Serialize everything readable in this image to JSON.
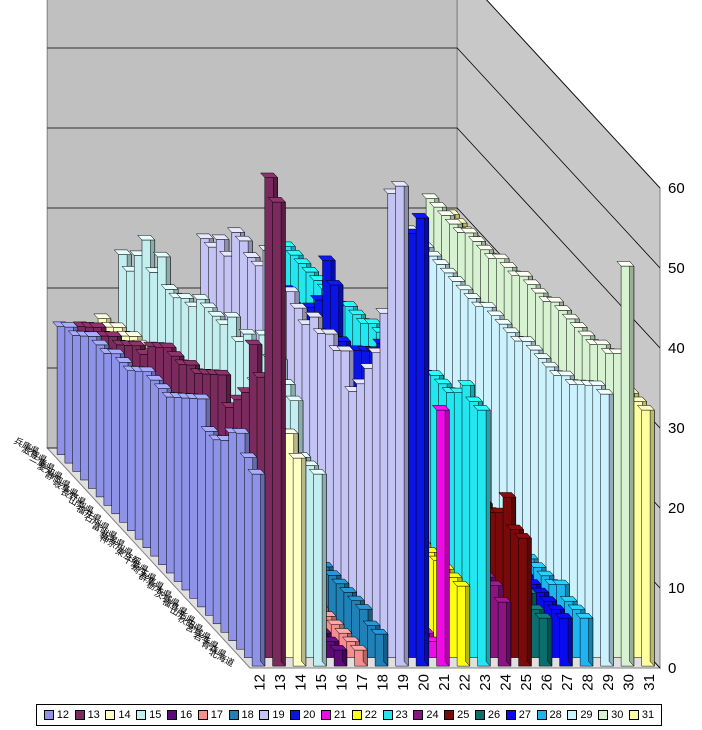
{
  "chart_data": {
    "type": "bar",
    "subtype": "3d-column",
    "title": "",
    "xlabel": "",
    "ylabel": "",
    "zlim": [
      0,
      60
    ],
    "z_ticks": [
      0,
      10,
      20,
      30,
      40,
      50,
      60
    ],
    "grid": true,
    "legend_position": "bottom",
    "categories": [
      "北海道",
      "青森県",
      "岩手県",
      "宮城県",
      "秋田県",
      "山形県",
      "福島県",
      "茨城県",
      "栃木県",
      "群馬県",
      "埼玉県",
      "千葉県",
      "東京都",
      "神奈川県",
      "新潟県",
      "富山県",
      "石川県",
      "福井県",
      "山梨県",
      "長野県",
      "岐阜県",
      "静岡県",
      "愛知県",
      "三重県",
      "滋賀県",
      "兵庫県"
    ],
    "series": [
      {
        "name": "12",
        "color": "#8F93E8",
        "values": [
          24,
          25,
          27,
          26,
          24,
          23,
          23,
          26,
          25,
          24,
          23,
          22,
          22,
          22,
          22,
          21,
          20,
          20,
          20,
          19,
          19,
          19,
          18,
          17,
          17,
          16
        ]
      },
      {
        "name": "13",
        "color": "#7A2A5C",
        "values": [
          58,
          60,
          34,
          37,
          30,
          28,
          26,
          29,
          28,
          27,
          26,
          26,
          25,
          25,
          25,
          24,
          23,
          21,
          21,
          20,
          19,
          19,
          18,
          18,
          17,
          16
        ]
      },
      {
        "name": "14",
        "color": "#FFFFC2",
        "values": [
          26,
          28,
          27,
          24,
          23,
          24,
          22,
          23,
          22,
          22,
          22,
          21,
          21,
          21,
          21,
          20,
          20,
          20,
          19,
          19,
          19,
          19,
          18,
          18,
          17,
          17
        ]
      },
      {
        "name": "15",
        "color": "#C2EEF0",
        "values": [
          24,
          24,
          24,
          30,
          31,
          33,
          32,
          34,
          27,
          32,
          30,
          32,
          30,
          30,
          30,
          30,
          28,
          28,
          27,
          27,
          30,
          27,
          30,
          27,
          24,
          25
        ]
      },
      {
        "name": "16",
        "color": "#5C0A78",
        "values": [
          2,
          2,
          2,
          3,
          2,
          2,
          2,
          2,
          2,
          2,
          2,
          2,
          2,
          2,
          2,
          2,
          2,
          2,
          2,
          2,
          2,
          2,
          2,
          2,
          2,
          2
        ]
      },
      {
        "name": "17",
        "color": "#F58E8E",
        "values": [
          2,
          2,
          2,
          2,
          2,
          2,
          2,
          2,
          2,
          2,
          2,
          2,
          2,
          2,
          2,
          2,
          2,
          2,
          2,
          2,
          2,
          2,
          2,
          2,
          2,
          2
        ]
      },
      {
        "name": "18",
        "color": "#2080B8",
        "values": [
          4,
          4,
          5,
          5,
          5,
          5,
          5,
          5,
          5,
          5,
          5,
          5,
          5,
          5,
          5,
          5,
          5,
          5,
          5,
          5,
          5,
          5,
          5,
          5,
          5,
          5
        ]
      },
      {
        "name": "19",
        "color": "#C4C4F4",
        "values": [
          60,
          58,
          42,
          36,
          33,
          30,
          28,
          32,
          31,
          32,
          31,
          32,
          30,
          31,
          32,
          31,
          31,
          34,
          31,
          31,
          32,
          32,
          28,
          29,
          27,
          27
        ]
      },
      {
        "name": "20",
        "color": "#0A14E6",
        "values": [
          56,
          53,
          46,
          41,
          37,
          35,
          33,
          32,
          31,
          28,
          30,
          36,
          38,
          32,
          30,
          26,
          28,
          29,
          26,
          27,
          24,
          23,
          22,
          22,
          21,
          20
        ]
      },
      {
        "name": "21",
        "color": "#F00AE6",
        "values": [
          32,
          2,
          2,
          2,
          2,
          2,
          2,
          2,
          2,
          2,
          2,
          2,
          2,
          2,
          2,
          2,
          2,
          2,
          2,
          2,
          2,
          2,
          2,
          2,
          2,
          2
        ]
      },
      {
        "name": "22",
        "color": "#FFFF10",
        "values": [
          10,
          10,
          10,
          10,
          10,
          10,
          10,
          10,
          10,
          10,
          10,
          10,
          10,
          10,
          10,
          10,
          10,
          10,
          10,
          10,
          10,
          10,
          10,
          10,
          10,
          10
        ]
      },
      {
        "name": "23",
        "color": "#22E6F0",
        "values": [
          32,
          32,
          33,
          31,
          30,
          30,
          30,
          29,
          30,
          29,
          29,
          29,
          28,
          28,
          28,
          27,
          27,
          27,
          26,
          26,
          26,
          26,
          26,
          26,
          26,
          26
        ]
      },
      {
        "name": "24",
        "color": "#8A1480",
        "values": [
          8,
          9,
          9,
          9,
          9,
          9,
          9,
          9,
          9,
          9,
          9,
          9,
          9,
          9,
          9,
          9,
          9,
          9,
          9,
          9,
          9,
          9,
          9,
          9,
          9,
          9
        ]
      },
      {
        "name": "25",
        "color": "#7A0A0A",
        "values": [
          16,
          16,
          19,
          16,
          15,
          15,
          21,
          16,
          16,
          15,
          16,
          16,
          16,
          16,
          16,
          16,
          16,
          16,
          16,
          16,
          16,
          16,
          16,
          16,
          16,
          16
        ]
      },
      {
        "name": "26",
        "color": "#0A6E6E",
        "values": [
          6,
          6,
          7,
          6,
          6,
          6,
          6,
          6,
          6,
          6,
          6,
          6,
          6,
          6,
          6,
          6,
          6,
          6,
          6,
          6,
          6,
          6,
          6,
          6,
          6,
          6
        ]
      },
      {
        "name": "27",
        "color": "#0A0AF0",
        "values": [
          6,
          6,
          6,
          6,
          6,
          6,
          6,
          6,
          6,
          6,
          6,
          6,
          6,
          6,
          6,
          6,
          6,
          6,
          6,
          6,
          6,
          6,
          6,
          6,
          6,
          6
        ]
      },
      {
        "name": "28",
        "color": "#1EB4F0",
        "values": [
          6,
          6,
          6,
          7,
          6,
          6,
          6,
          6,
          6,
          6,
          6,
          6,
          6,
          6,
          6,
          6,
          6,
          6,
          6,
          6,
          6,
          6,
          6,
          6,
          6,
          6
        ]
      },
      {
        "name": "29",
        "color": "#CCF2FF",
        "values": [
          34,
          34,
          33,
          32,
          31,
          31,
          30,
          30,
          30,
          30,
          30,
          29,
          29,
          29,
          29,
          29,
          28,
          28,
          28,
          28,
          28,
          28,
          28,
          28,
          28,
          28
        ]
      },
      {
        "name": "30",
        "color": "#D6F2D0",
        "values": [
          50,
          38,
          37,
          37,
          36,
          36,
          36,
          36,
          36,
          36,
          35,
          35,
          35,
          35,
          34,
          34,
          34,
          33,
          33,
          33,
          33,
          32,
          32,
          32,
          32,
          32
        ]
      },
      {
        "name": "31",
        "color": "#FFFFA0",
        "values": [
          32,
          32,
          32,
          31,
          31,
          31,
          31,
          30,
          30,
          30,
          30,
          30,
          30,
          30,
          30,
          30,
          30,
          30,
          30,
          30,
          30,
          30,
          30,
          30,
          30,
          30
        ]
      }
    ]
  }
}
